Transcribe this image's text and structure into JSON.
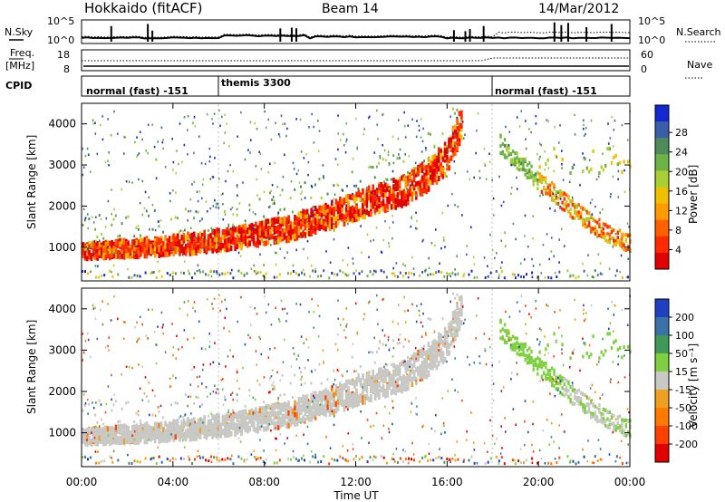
{
  "header": {
    "station": "Hokkaido (fitACF)",
    "beam": "Beam 14",
    "date": "14/Mar/2012"
  },
  "summary_panel": {
    "nsky_label": "N.Sky",
    "nsearch_label": "N.Search",
    "left_ticks": [
      "10^5",
      "10^0"
    ],
    "right_ticks": [
      "10^5",
      "10^0"
    ],
    "freq_label": "Freq.",
    "freq_unit": "[MHz]",
    "freq_ticks": [
      "18",
      "8"
    ],
    "nave_label": "Nave",
    "nave_ticks": [
      "60",
      "0"
    ],
    "cpid_label": "CPID",
    "cpid_segments": [
      {
        "label": "normal (fast) -151",
        "start_hour": 0,
        "end_hour": 6
      },
      {
        "label": "themis 3300",
        "start_hour": 6,
        "end_hour": 18
      },
      {
        "label": "normal (fast) -151",
        "start_hour": 18,
        "end_hour": 24
      }
    ]
  },
  "chart_data": [
    {
      "type": "heatmap",
      "parameter": "Power",
      "ylabel": "Slant Range [km]",
      "ylim": [
        180,
        4500
      ],
      "yticks": [
        "1000",
        "2000",
        "3000",
        "4000"
      ],
      "xlim_hours": [
        0,
        24
      ],
      "colorbar_label": "Power [dB]",
      "colorbar_ticks": [
        "4",
        "8",
        "12",
        "16",
        "20",
        "24",
        "28"
      ],
      "colorbar_colors": [
        "#1428d2",
        "#3a5ea8",
        "#4f8a5a",
        "#6bb347",
        "#a9cf36",
        "#f0c000",
        "#ff9a00",
        "#ff6000",
        "#ff2a00",
        "#e00000"
      ],
      "scatter_bands": [
        {
          "name": "main",
          "hours": [
            0,
            3,
            5,
            7,
            9,
            11,
            12.5,
            14,
            15,
            16,
            16.5
          ],
          "range_km": [
            900,
            1000,
            1100,
            1250,
            1450,
            1800,
            2100,
            2350,
            2700,
            3200,
            3900
          ]
        },
        {
          "name": "post-18",
          "hours": [
            18.3,
            20,
            21.5,
            23,
            24
          ],
          "range_km": [
            3500,
            2600,
            1900,
            1300,
            1100
          ]
        }
      ]
    },
    {
      "type": "heatmap",
      "parameter": "Velocity",
      "ylabel": "Slant Range [km]",
      "ylim": [
        180,
        4500
      ],
      "yticks": [
        "1000",
        "2000",
        "3000",
        "4000"
      ],
      "xlim_hours": [
        0,
        24
      ],
      "xticks": [
        "00:00",
        "04:00",
        "08:00",
        "12:00",
        "16:00",
        "20:00",
        "00:00"
      ],
      "xlabel": "Time UT",
      "colorbar_label": "Velocity [m s⁻¹]",
      "colorbar_ticks": [
        "200",
        "100",
        "50",
        "15",
        "-15",
        "-50",
        "-100",
        "-200"
      ],
      "colorbar_colors": [
        "#2040c0",
        "#3a72a8",
        "#3f9a5a",
        "#7fd040",
        "#c8c8c4",
        "#f0a020",
        "#ff7a00",
        "#ff4000",
        "#e00000"
      ],
      "ground_scatter_color": "#c8c8c4"
    }
  ]
}
